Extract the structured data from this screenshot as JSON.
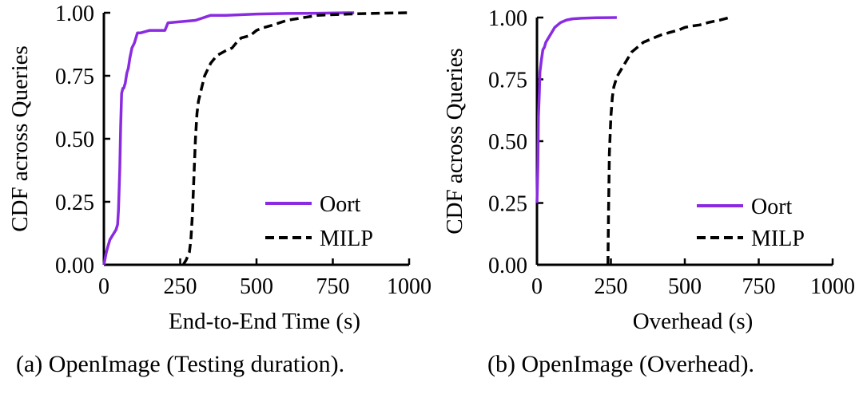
{
  "chart_data": [
    {
      "type": "line",
      "caption": "(a) OpenImage (Testing duration).",
      "xlabel": "End-to-End Time (s)",
      "ylabel": "CDF across Queries",
      "xlim": [
        0,
        1000
      ],
      "ylim": [
        0,
        1
      ],
      "xticks": [
        0,
        250,
        500,
        750,
        1000
      ],
      "xtick_labels": [
        "0",
        "250",
        "500",
        "750",
        "1000"
      ],
      "yticks": [
        0,
        0.25,
        0.5,
        0.75,
        1.0
      ],
      "ytick_labels": [
        "0.00",
        "0.25",
        "0.50",
        "0.75",
        "1.00"
      ],
      "grid": false,
      "legend": "bottom-right",
      "series": [
        {
          "name": "Oort",
          "color": "#8a2be2",
          "style": "solid",
          "x": [
            0,
            8,
            15,
            20,
            30,
            40,
            45,
            48,
            52,
            55,
            58,
            62,
            65,
            70,
            75,
            80,
            85,
            92,
            100,
            110,
            120,
            150,
            200,
            210,
            300,
            350,
            400,
            500,
            600,
            700,
            800,
            820
          ],
          "y": [
            0,
            0.05,
            0.08,
            0.1,
            0.12,
            0.14,
            0.16,
            0.22,
            0.38,
            0.55,
            0.68,
            0.7,
            0.7,
            0.72,
            0.76,
            0.78,
            0.82,
            0.86,
            0.88,
            0.92,
            0.92,
            0.93,
            0.93,
            0.96,
            0.97,
            0.99,
            0.99,
            0.995,
            0.997,
            0.998,
            1.0,
            1.0
          ]
        },
        {
          "name": "MILP",
          "color": "#000000",
          "style": "dashed",
          "x": [
            260,
            270,
            280,
            285,
            290,
            295,
            300,
            305,
            310,
            320,
            330,
            350,
            370,
            400,
            420,
            440,
            450,
            480,
            500,
            520,
            550,
            600,
            650,
            700,
            800,
            900,
            1000
          ],
          "y": [
            0,
            0.02,
            0.05,
            0.1,
            0.2,
            0.35,
            0.5,
            0.6,
            0.65,
            0.7,
            0.75,
            0.8,
            0.83,
            0.85,
            0.86,
            0.89,
            0.9,
            0.91,
            0.93,
            0.94,
            0.95,
            0.97,
            0.98,
            0.99,
            0.995,
            0.998,
            1.0
          ]
        }
      ]
    },
    {
      "type": "line",
      "caption": "(b) OpenImage (Overhead).",
      "xlabel": "Overhead (s)",
      "ylabel": "CDF across Queries",
      "xlim": [
        0,
        1000
      ],
      "ylim": [
        0,
        1
      ],
      "xticks": [
        0,
        250,
        500,
        750,
        1000
      ],
      "xtick_labels": [
        "0",
        "250",
        "500",
        "750",
        "1000"
      ],
      "yticks": [
        0,
        0.25,
        0.5,
        0.75,
        1.0
      ],
      "ytick_labels": [
        "0.00",
        "0.25",
        "0.50",
        "0.75",
        "1.00"
      ],
      "grid": false,
      "legend": "bottom-right",
      "series": [
        {
          "name": "Oort",
          "color": "#8a2be2",
          "style": "solid",
          "x": [
            0,
            3,
            5,
            8,
            10,
            15,
            20,
            25,
            30,
            40,
            50,
            60,
            70,
            80,
            100,
            120,
            150,
            200,
            270
          ],
          "y": [
            0.25,
            0.4,
            0.6,
            0.7,
            0.78,
            0.83,
            0.87,
            0.88,
            0.9,
            0.92,
            0.94,
            0.96,
            0.97,
            0.98,
            0.99,
            0.995,
            0.997,
            0.999,
            1.0
          ]
        },
        {
          "name": "MILP",
          "color": "#000000",
          "style": "dashed",
          "x": [
            240,
            242,
            245,
            250,
            255,
            260,
            265,
            270,
            280,
            290,
            300,
            320,
            340,
            360,
            380,
            400,
            420,
            450,
            480,
            500,
            520,
            550,
            580,
            600,
            620,
            650
          ],
          "y": [
            0,
            0.2,
            0.45,
            0.6,
            0.68,
            0.72,
            0.74,
            0.76,
            0.78,
            0.8,
            0.82,
            0.86,
            0.88,
            0.9,
            0.91,
            0.92,
            0.93,
            0.94,
            0.95,
            0.96,
            0.965,
            0.97,
            0.98,
            0.985,
            0.99,
            1.0
          ]
        }
      ]
    }
  ]
}
